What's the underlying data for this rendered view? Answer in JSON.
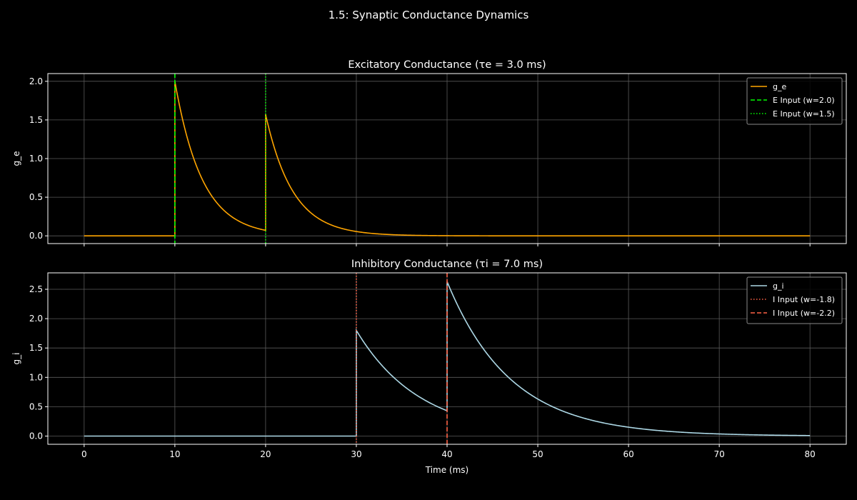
{
  "figure": {
    "suptitle": "1.5: Synaptic Conductance Dynamics",
    "background": "#000000",
    "foreground": "#ffffff"
  },
  "chart_data": [
    {
      "type": "line",
      "title": "Excitatory Conductance (τe = 3.0 ms)",
      "xlabel": "",
      "ylabel": "g_e",
      "xlim": [
        -4,
        84
      ],
      "ylim": [
        -0.1,
        2.1
      ],
      "xticks": [
        0,
        10,
        20,
        30,
        40,
        50,
        60,
        70,
        80
      ],
      "xtick_labels_visible": false,
      "yticks": [
        0.0,
        0.5,
        1.0,
        1.5,
        2.0
      ],
      "ytick_labels": [
        "0.0",
        "0.5",
        "1.0",
        "1.5",
        "2.0"
      ],
      "grid": true,
      "legend_position": "top-right",
      "series": [
        {
          "name": "g_e",
          "kind": "exp-decay",
          "color": "#ffa500",
          "tau": 3.0,
          "x_range": [
            0,
            80
          ],
          "impulses": [
            {
              "t": 10,
              "w": 2.0
            },
            {
              "t": 20,
              "w": 1.5
            }
          ]
        }
      ],
      "vlines": [
        {
          "name": "E Input (w=2.0)",
          "x": 10,
          "color": "#00ff00",
          "style": "dashed"
        },
        {
          "name": "E Input (w=1.5)",
          "x": 20,
          "color": "#00ff00",
          "style": "dotted"
        }
      ]
    },
    {
      "type": "line",
      "title": "Inhibitory Conductance (τi = 7.0 ms)",
      "xlabel": "Time (ms)",
      "ylabel": "g_i",
      "xlim": [
        -4,
        84
      ],
      "ylim": [
        -0.14,
        2.78
      ],
      "xticks": [
        0,
        10,
        20,
        30,
        40,
        50,
        60,
        70,
        80
      ],
      "xtick_labels": [
        "0",
        "10",
        "20",
        "30",
        "40",
        "50",
        "60",
        "70",
        "80"
      ],
      "xtick_labels_visible": true,
      "yticks": [
        0.0,
        0.5,
        1.0,
        1.5,
        2.0,
        2.5
      ],
      "ytick_labels": [
        "0.0",
        "0.5",
        "1.0",
        "1.5",
        "2.0",
        "2.5"
      ],
      "grid": true,
      "legend_position": "top-right",
      "series": [
        {
          "name": "g_i",
          "kind": "exp-decay",
          "color": "#add8e6",
          "tau": 7.0,
          "x_range": [
            0,
            80
          ],
          "impulses": [
            {
              "t": 30,
              "w": 1.8
            },
            {
              "t": 40,
              "w": 2.2
            }
          ]
        }
      ],
      "vlines": [
        {
          "name": "I Input (w=-1.8)",
          "x": 30,
          "color": "#ff6347",
          "style": "dotted"
        },
        {
          "name": "I Input (w=-2.2)",
          "x": 40,
          "color": "#ff6347",
          "style": "dashed"
        }
      ]
    }
  ]
}
